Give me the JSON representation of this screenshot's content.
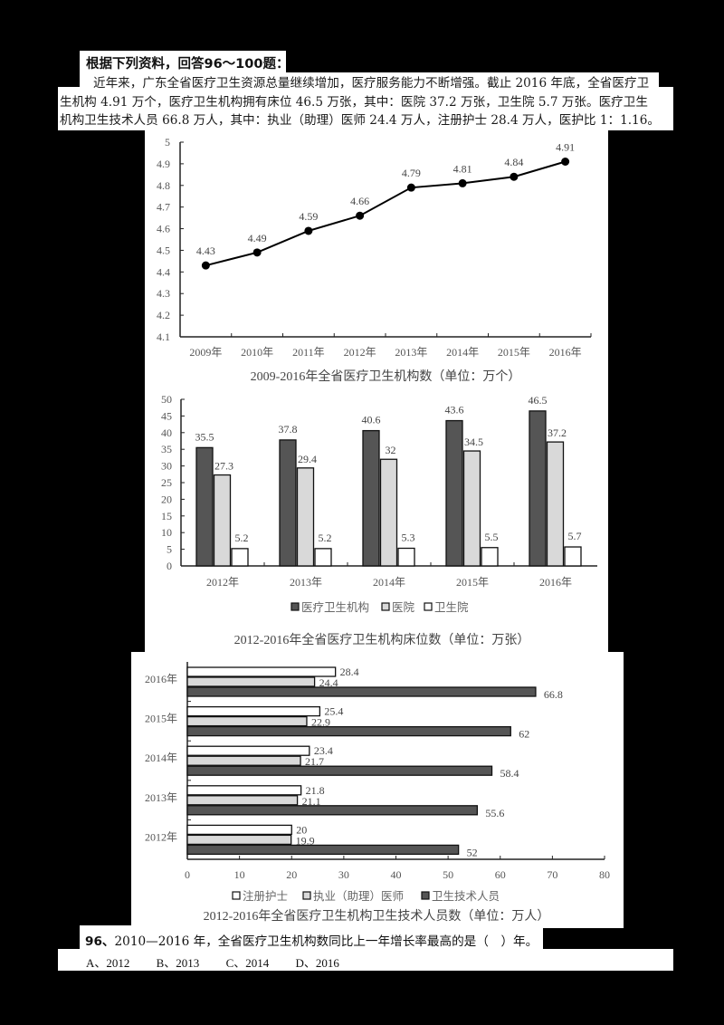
{
  "intro": {
    "heading": "根据下列资料，回答96～100题：",
    "paragraph_lines": [
      "近年来，广东全省医疗卫生资源总量继续增加，医疗服务能力不断增强。截止 2016 年底，全省医疗卫",
      "生机构 4.91 万个，医疗卫生机构拥有床位 46.5 万张，其中：医院 37.2 万张，卫生院 5.7 万张。医疗卫生",
      "机构卫生技术人员 66.8 万人，其中：执业（助理）医师 24.4 万人，注册护士 28.4 万人，医护比 1：1.16。"
    ]
  },
  "chart_data": [
    {
      "type": "line",
      "title": "2009-2016年全省医疗卫生机构数（单位：万个）",
      "categories": [
        "2009年",
        "2010年",
        "2011年",
        "2012年",
        "2013年",
        "2014年",
        "2015年",
        "2016年"
      ],
      "values": [
        4.43,
        4.49,
        4.59,
        4.66,
        4.79,
        4.81,
        4.84,
        4.91
      ],
      "value_labels": [
        "4.43",
        "4.49",
        "4.59",
        "4.66",
        "4.79",
        "4.81",
        "4.84",
        "4.91"
      ],
      "ylim": [
        4.1,
        5.0
      ],
      "yticks": [
        "4.1",
        "4.2",
        "4.3",
        "4.4",
        "4.5",
        "4.6",
        "4.7",
        "4.8",
        "4.9",
        "5"
      ],
      "xlabel": "",
      "ylabel": "",
      "grid": false,
      "marker": "filled-circle",
      "line_color": "#000000"
    },
    {
      "type": "bar",
      "title": "2012-2016年全省医疗卫生机构床位数（单位：万张）",
      "categories": [
        "2012年",
        "2013年",
        "2014年",
        "2015年",
        "2016年"
      ],
      "series": [
        {
          "name": "医疗卫生机构",
          "values": [
            35.5,
            37.8,
            40.6,
            43.6,
            46.5
          ],
          "labels": [
            "35.5",
            "37.8",
            "40.6",
            "43.6",
            "46.5"
          ],
          "color": "#555555"
        },
        {
          "name": "医院",
          "values": [
            27.3,
            29.4,
            32,
            34.5,
            37.2
          ],
          "labels": [
            "27.3",
            "29.4",
            "32",
            "34.5",
            "37.2"
          ],
          "color": "#d9d9d9"
        },
        {
          "name": "卫生院",
          "values": [
            5.2,
            5.2,
            5.3,
            5.5,
            5.7
          ],
          "labels": [
            "5.2",
            "5.2",
            "5.3",
            "5.5",
            "5.7"
          ],
          "color": "#ffffff"
        }
      ],
      "ylim": [
        0,
        50
      ],
      "yticks": [
        "0",
        "5",
        "10",
        "15",
        "20",
        "25",
        "30",
        "35",
        "40",
        "45",
        "50"
      ],
      "grid": false,
      "legend_position": "bottom"
    },
    {
      "type": "bar",
      "orientation": "horizontal",
      "title": "2012-2016年全省医疗卫生机构卫生技术人员数（单位：万人）",
      "categories": [
        "2016年",
        "2015年",
        "2014年",
        "2013年",
        "2012年"
      ],
      "series": [
        {
          "name": "注册护士",
          "values": [
            28.4,
            25.4,
            23.4,
            21.8,
            20
          ],
          "labels": [
            "28.4",
            "25.4",
            "23.4",
            "21.8",
            "20"
          ],
          "color": "#ffffff"
        },
        {
          "name": "执业（助理）医师",
          "values": [
            24.4,
            22.9,
            21.7,
            21.1,
            19.9
          ],
          "labels": [
            "24.4",
            "22.9",
            "21.7",
            "21.1",
            "19.9"
          ],
          "color": "#d9d9d9"
        },
        {
          "name": "卫生技术人员",
          "values": [
            66.8,
            62,
            58.4,
            55.6,
            52
          ],
          "labels": [
            "66.8",
            "62",
            "58.4",
            "55.6",
            "52"
          ],
          "color": "#555555"
        }
      ],
      "xlim": [
        0,
        80
      ],
      "xticks": [
        "0",
        "10",
        "20",
        "30",
        "40",
        "50",
        "60",
        "70",
        "80"
      ],
      "grid": false,
      "legend_position": "bottom"
    }
  ],
  "question": {
    "number": "96、",
    "text": "2010—2016 年，全省医疗卫生机构数同比上一年增长率最高的是（　）年。",
    "options": [
      "A、2012",
      "B、2013",
      "C、2014",
      "D、2016"
    ]
  }
}
